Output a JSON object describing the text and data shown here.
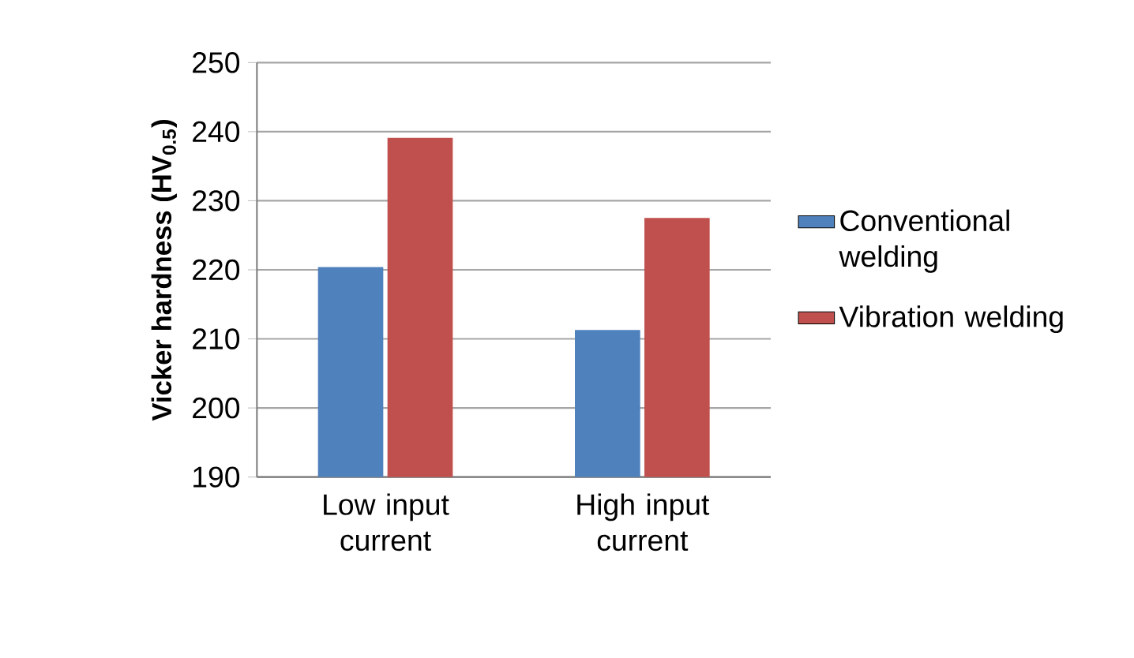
{
  "chart_data": {
    "type": "bar",
    "ylabel": "Vicker hardness (HV$_{0.5}$)",
    "categories": [
      "Low input current",
      "High input current"
    ],
    "series": [
      {
        "name": "Conventional welding",
        "color": "#4f81bd",
        "values": [
          220.4,
          211.3
        ]
      },
      {
        "name": "Vibration welding",
        "color": "#c0504d",
        "values": [
          239.1,
          227.5
        ]
      }
    ],
    "ylim": [
      190,
      250
    ],
    "yticks": [
      190,
      200,
      210,
      220,
      230,
      240,
      250
    ],
    "grid": "y",
    "legend": "right"
  }
}
